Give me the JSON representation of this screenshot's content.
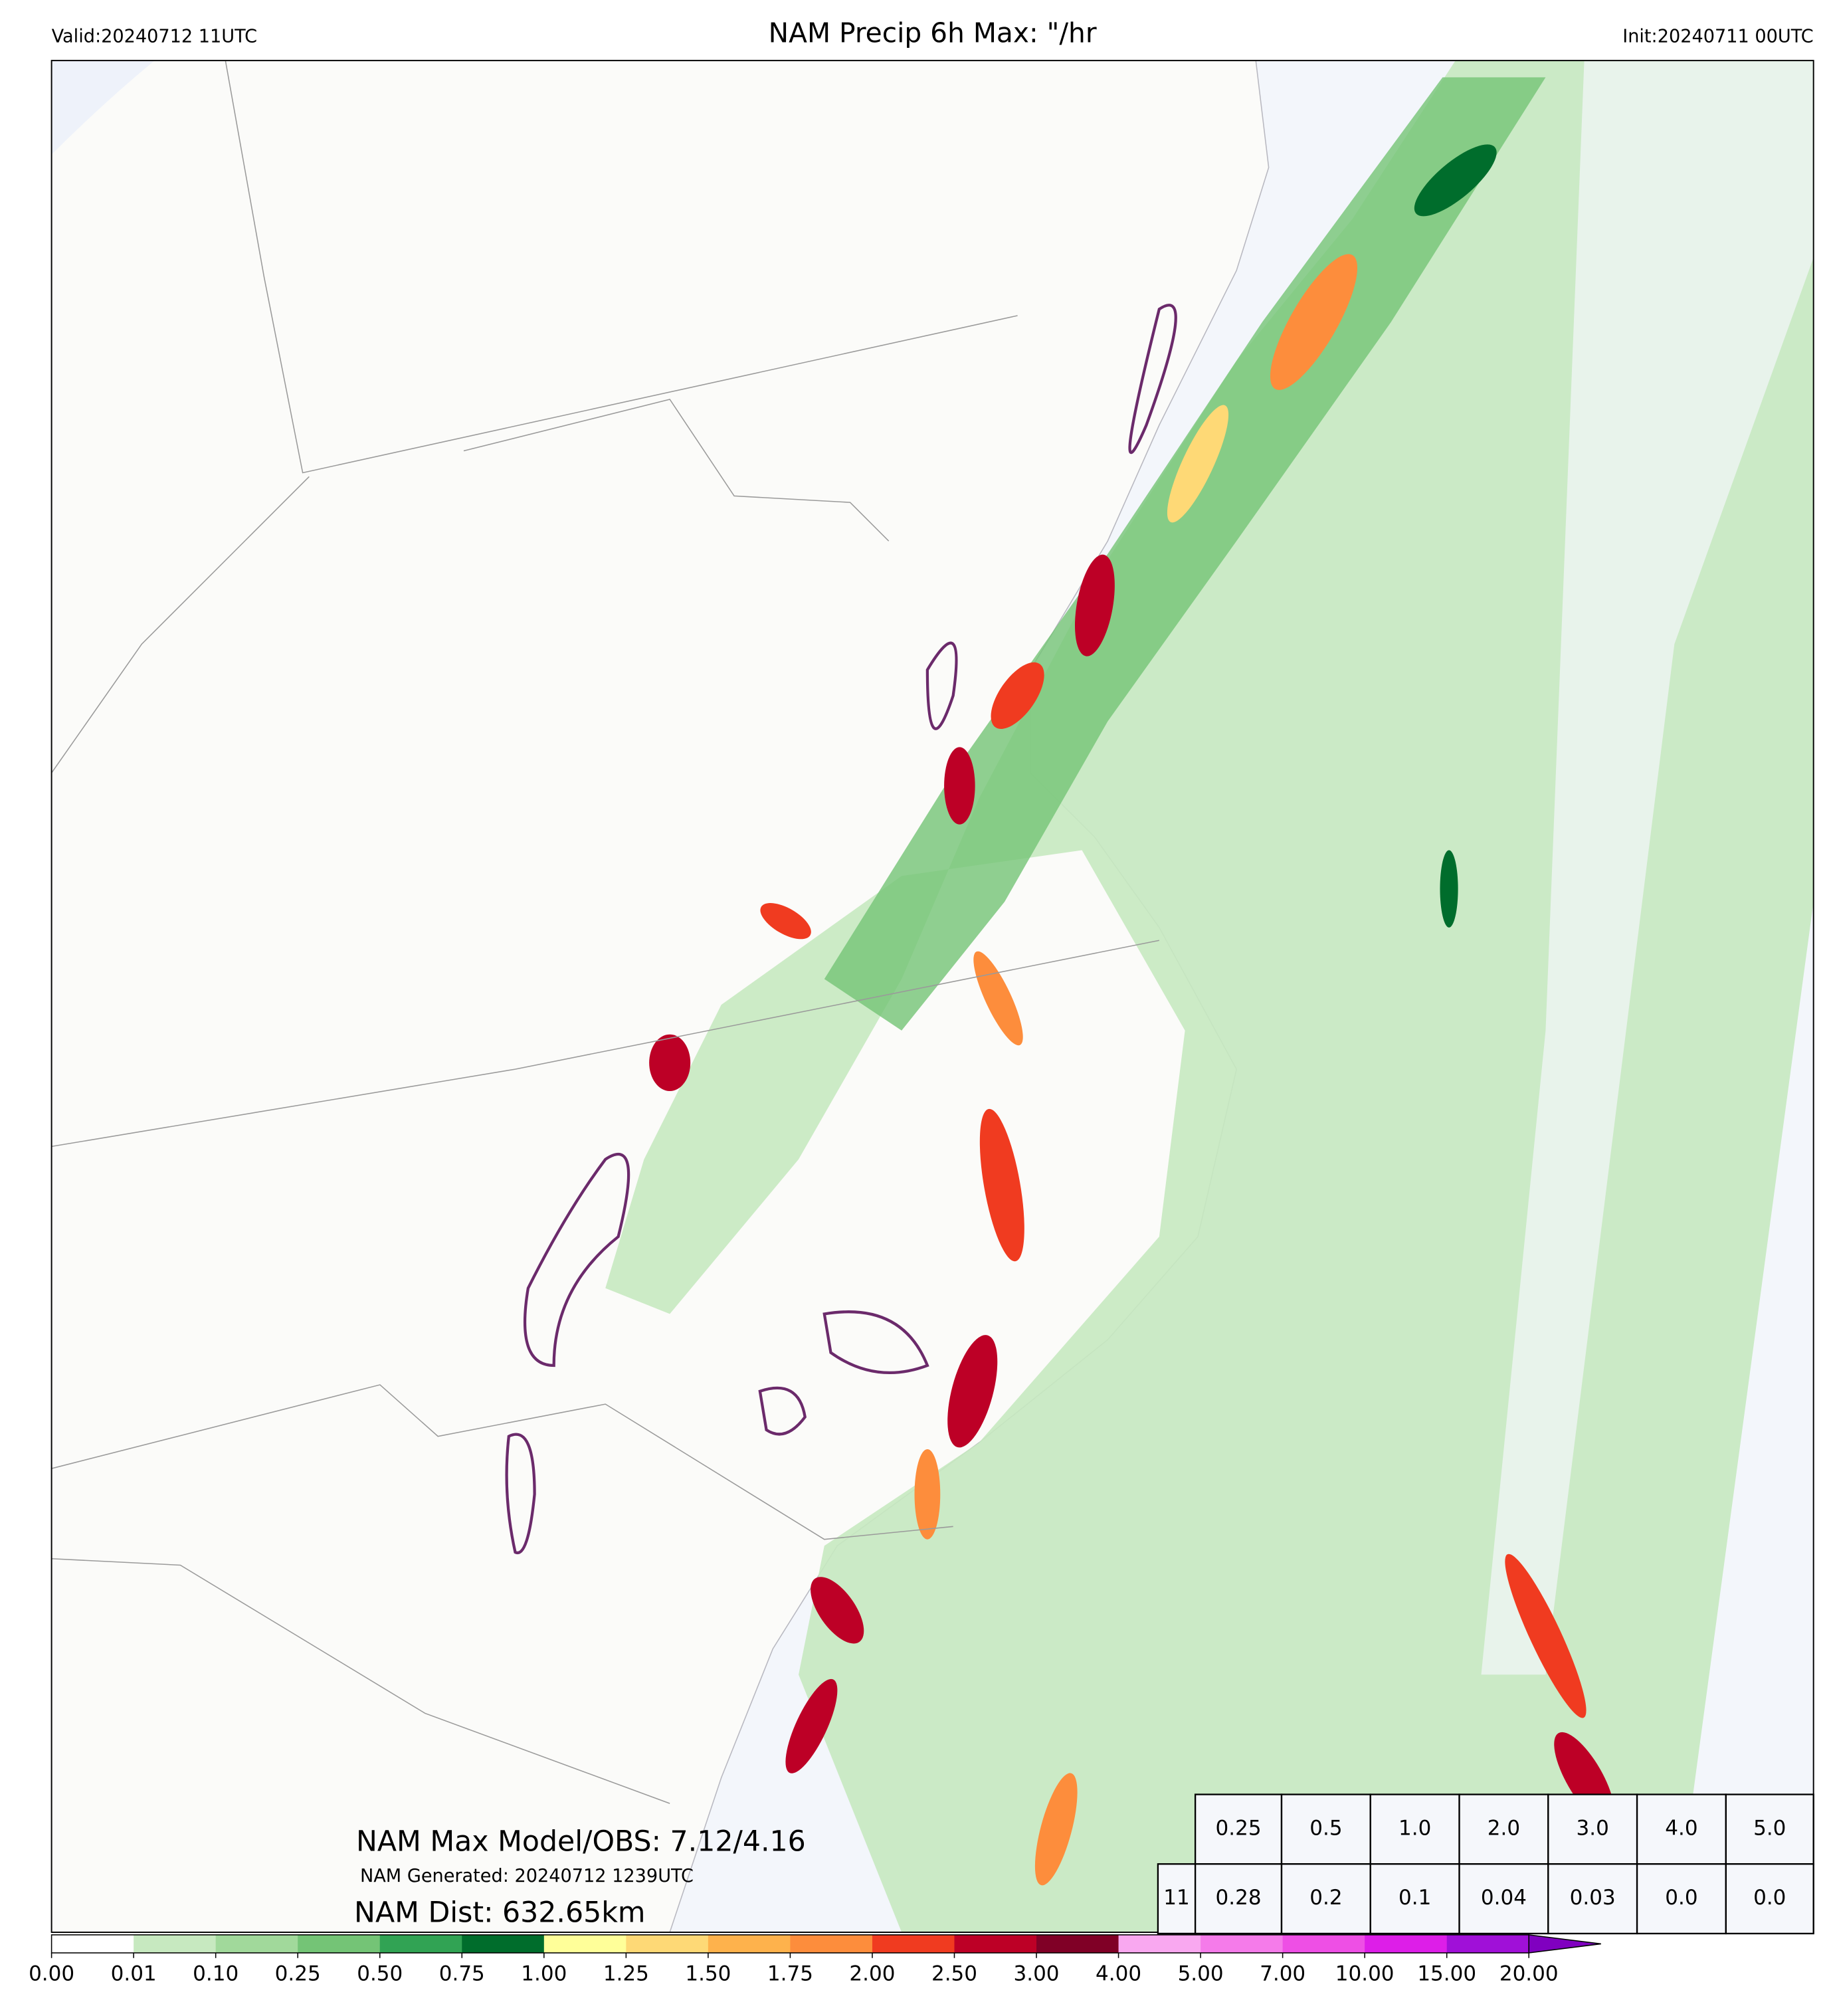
{
  "header": {
    "valid": "Valid:20240712 11UTC",
    "title": "NAM Precip 6h Max: \"/hr",
    "init": "Init:20240711 00UTC"
  },
  "annotations": {
    "max": "NAM Max Model/OBS: 7.12/4.16",
    "generated": "NAM Generated: 20240712 1239UTC",
    "dist": "NAM Dist: 632.65km"
  },
  "table": {
    "rows": [
      [
        "0.25",
        "0.5",
        "1.0",
        "2.0",
        "3.0",
        "4.0",
        "5.0"
      ],
      [
        "11",
        "0.28",
        "0.2",
        "0.1",
        "0.04",
        "0.03",
        "0.0",
        "0.0"
      ]
    ]
  },
  "colorbar": {
    "labels": [
      "0.00",
      "0.01",
      "0.10",
      "0.25",
      "0.50",
      "0.75",
      "1.00",
      "1.25",
      "1.50",
      "1.75",
      "2.00",
      "2.50",
      "3.00",
      "4.00",
      "5.00",
      "7.00",
      "10.00",
      "15.00",
      "20.00"
    ],
    "colors": [
      "#ffffff",
      "#c7e9c0",
      "#a1d99b",
      "#74c476",
      "#31a354",
      "#006d2c",
      "#ffff99",
      "#fed976",
      "#feb24c",
      "#fd8d3c",
      "#f03b20",
      "#bd0026",
      "#800026",
      "#f9a8f0",
      "#f57bea",
      "#ee4fe5",
      "#dd1ee8",
      "#a010d8"
    ],
    "extend_color": "#8000c0"
  }
}
